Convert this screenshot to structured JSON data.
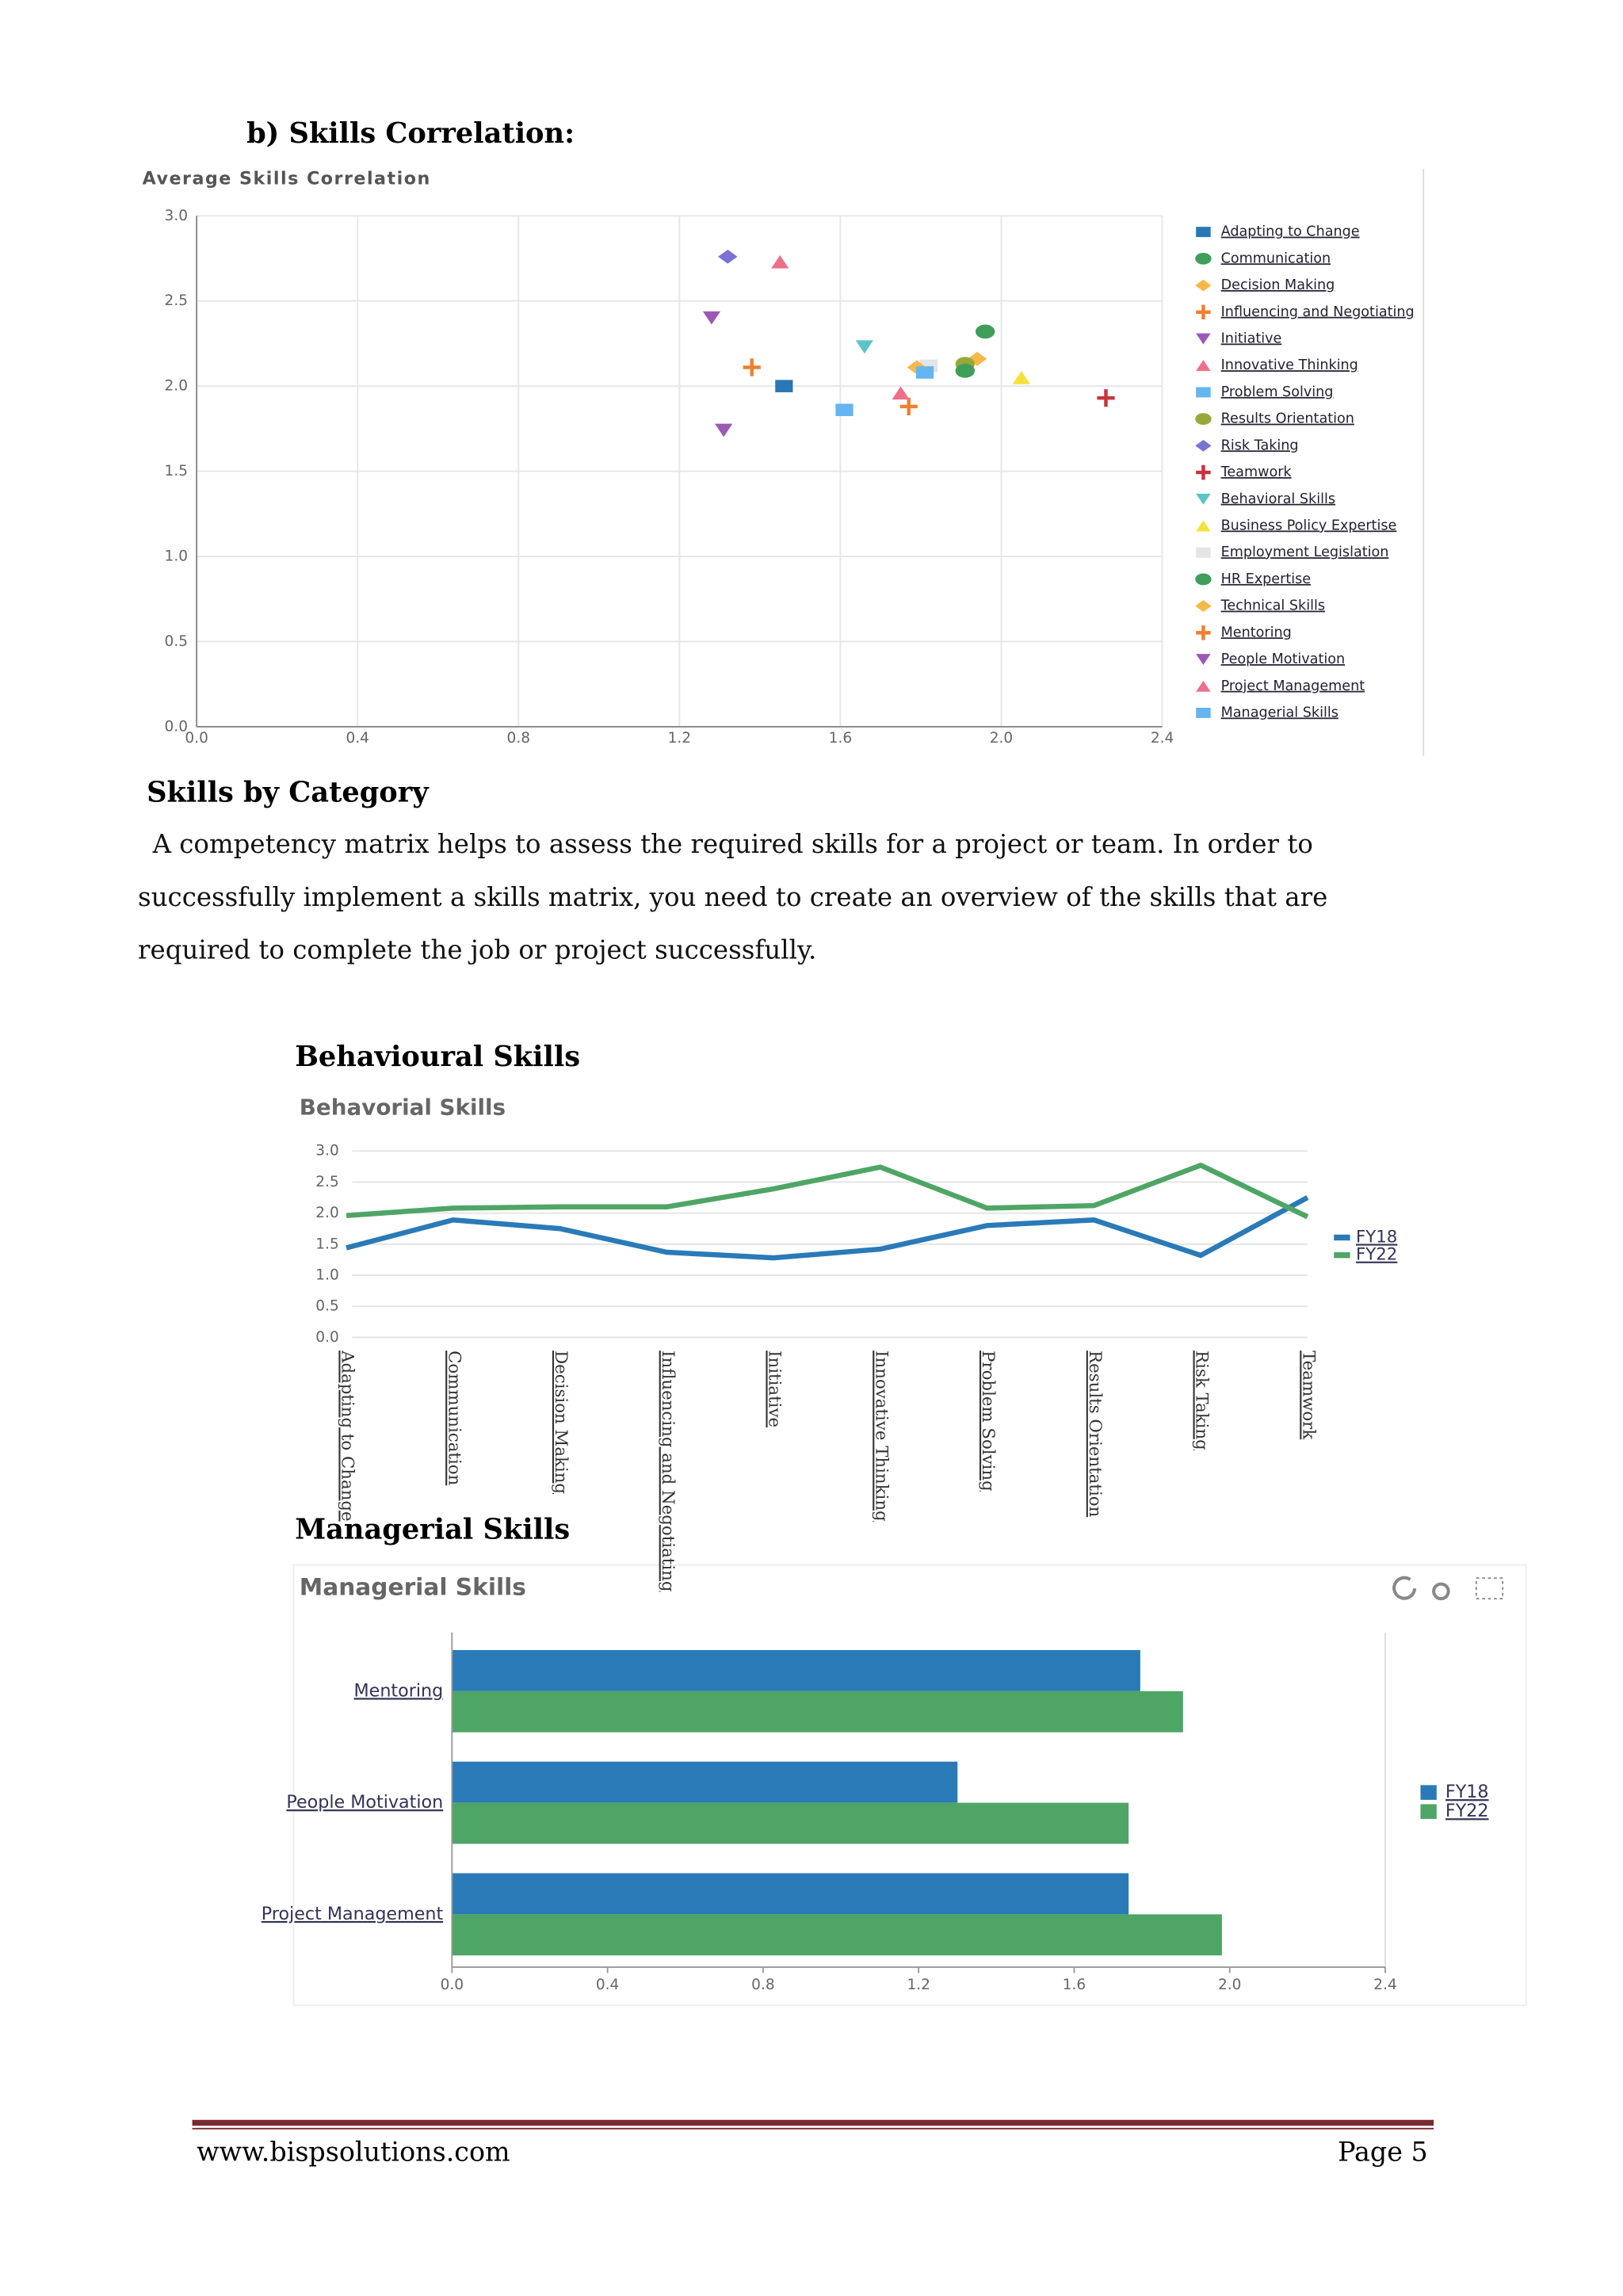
{
  "heading": "b)   Skills Correlation:",
  "section_title": "Skills by Category",
  "paragraph": "A competency matrix helps to assess the required skills for a project or team. In order to successfully implement a skills matrix, you need to create an overview of the skills that are required to complete the job or project successfully.",
  "behavioural_heading": "Behavioural Skills",
  "managerial_heading": "Managerial Skills",
  "footer": {
    "website": "www.bispsolutions.com",
    "page": "Page 5"
  },
  "chart_data": [
    {
      "type": "scatter",
      "title": "Average Skills Correlation",
      "xlim": [
        0,
        2.4
      ],
      "xticks": [
        {
          "value": 0,
          "label": "0.0"
        },
        0.4,
        0.8,
        1.2,
        1.6,
        {
          "value": 2,
          "label": "2.0"
        },
        2.4
      ],
      "ylim": [
        0,
        3
      ],
      "yticks": [
        {
          "value": 0,
          "label": "0.0"
        },
        0.5,
        {
          "value": 1,
          "label": "1.0"
        },
        1.5,
        {
          "value": 2,
          "label": "2.0"
        },
        2.5,
        {
          "value": 3,
          "label": "3.0"
        }
      ],
      "grid": true,
      "legend": "right",
      "series": [
        {
          "name": "Adapting to Change",
          "color": "#2a77b4",
          "marker": "square",
          "x": [
            1.46
          ],
          "values": [
            2.0
          ]
        },
        {
          "name": "Communication",
          "color": "#3f9e5a",
          "marker": "circle",
          "x": [
            1.96
          ],
          "values": [
            2.32
          ]
        },
        {
          "name": "Decision Making",
          "color": "#f7b84a",
          "marker": "diamond",
          "x": [
            1.94
          ],
          "values": [
            2.16
          ]
        },
        {
          "name": "Influencing and Negotiating",
          "color": "#f07f2f",
          "marker": "plus",
          "x": [
            1.38
          ],
          "values": [
            2.11
          ]
        },
        {
          "name": "Initiative",
          "color": "#9b59b6",
          "marker": "triangle-down",
          "x": [
            1.28
          ],
          "values": [
            2.4
          ]
        },
        {
          "name": "Innovative Thinking",
          "color": "#ee6f8a",
          "marker": "triangle",
          "x": [
            1.45
          ],
          "values": [
            2.73
          ]
        },
        {
          "name": "Problem Solving",
          "color": "#64b5f0",
          "marker": "square",
          "x": [
            1.61
          ],
          "values": [
            1.86
          ]
        },
        {
          "name": "Results Orientation",
          "color": "#9aa83a",
          "marker": "circle",
          "x": [
            1.91
          ],
          "values": [
            2.13
          ]
        },
        {
          "name": "Risk Taking",
          "color": "#7b72d4",
          "marker": "diamond",
          "x": [
            1.32
          ],
          "values": [
            2.76
          ]
        },
        {
          "name": "Teamwork",
          "color": "#c8323c",
          "marker": "plus",
          "x": [
            2.26
          ],
          "values": [
            1.93
          ]
        },
        {
          "name": "Behavioral Skills",
          "color": "#5cc4c4",
          "marker": "triangle-down",
          "x": [
            1.66
          ],
          "values": [
            2.23
          ]
        },
        {
          "name": "Business Policy Expertise",
          "color": "#f5e13d",
          "marker": "triangle",
          "x": [
            2.05
          ],
          "values": [
            2.05
          ]
        },
        {
          "name": "Employment Legislation",
          "color": "#e4e4e4",
          "marker": "square",
          "x": [
            1.82
          ],
          "values": [
            2.12
          ]
        },
        {
          "name": "HR Expertise",
          "color": "#3f9e5a",
          "marker": "circle",
          "x": [
            1.91
          ],
          "values": [
            2.09
          ]
        },
        {
          "name": "Technical Skills",
          "color": "#f7b84a",
          "marker": "diamond",
          "x": [
            1.79
          ],
          "values": [
            2.11
          ]
        },
        {
          "name": "Mentoring",
          "color": "#f07f2f",
          "marker": "plus",
          "x": [
            1.77
          ],
          "values": [
            1.88
          ]
        },
        {
          "name": "People Motivation",
          "color": "#9b59b6",
          "marker": "triangle-down",
          "x": [
            1.31
          ],
          "values": [
            1.74
          ]
        },
        {
          "name": "Project Management",
          "color": "#ee6f8a",
          "marker": "triangle",
          "x": [
            1.75
          ],
          "values": [
            1.96
          ]
        },
        {
          "name": "Managerial Skills",
          "color": "#64b5f0",
          "marker": "square",
          "x": [
            1.81
          ],
          "values": [
            2.08
          ]
        }
      ]
    },
    {
      "type": "line",
      "title": "Behavorial Skills",
      "categories": [
        "Adapting to Change",
        "Communication",
        "Decision Making",
        "Influencing and Negotiating",
        "Initiative",
        "Innovative Thinking",
        "Problem Solving",
        "Results Orientation",
        "Risk Taking",
        "Teamwork"
      ],
      "ylim": [
        0,
        3
      ],
      "yticks": [
        {
          "value": 0,
          "label": "0.0"
        },
        0.5,
        {
          "value": 1,
          "label": "1.0"
        },
        1.5,
        {
          "value": 2,
          "label": "2.0"
        },
        2.5,
        {
          "value": 3,
          "label": "3.0"
        }
      ],
      "grid": true,
      "legend": "right",
      "series": [
        {
          "name": "FY18",
          "color": "#2a7ab8",
          "values": [
            1.44,
            1.89,
            1.75,
            1.37,
            1.28,
            1.42,
            1.8,
            1.89,
            1.32,
            2.25
          ]
        },
        {
          "name": "FY22",
          "color": "#4fa565",
          "values": [
            1.96,
            2.08,
            2.1,
            2.1,
            2.39,
            2.74,
            2.08,
            2.12,
            2.77,
            1.94
          ]
        }
      ]
    },
    {
      "type": "hbar",
      "title": "Managerial Skills",
      "categories": [
        "Mentoring",
        "People Motivation",
        "Project Management"
      ],
      "xlim": [
        0,
        2.4
      ],
      "xticks": [
        {
          "value": 0,
          "label": "0.0"
        },
        0.4,
        0.8,
        1.2,
        1.6,
        {
          "value": 2,
          "label": "2.0"
        },
        2.4
      ],
      "grid": false,
      "legend": "right",
      "series": [
        {
          "name": "FY18",
          "color": "#2a7ab8",
          "values": [
            1.77,
            1.3,
            1.74
          ]
        },
        {
          "name": "FY22",
          "color": "#4fa565",
          "values": [
            1.88,
            1.74,
            1.98
          ]
        }
      ]
    }
  ]
}
